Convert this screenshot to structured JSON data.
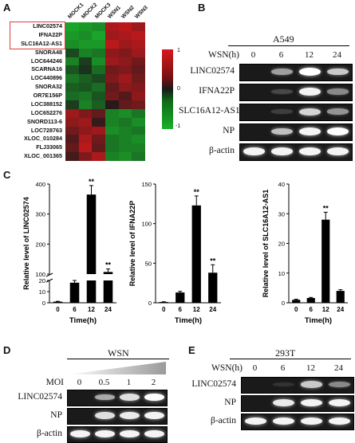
{
  "panels": {
    "A": {
      "letter": "A",
      "columns": [
        "MOCK1",
        "MOCK2",
        "MOCK3",
        "WSN1",
        "WSN2",
        "WSN3"
      ],
      "genes": [
        "LINC02574",
        "IFNA22P",
        "SLC16A12-AS1",
        "SNORA48",
        "LOC644246",
        "SCARNA16",
        "LOC440896",
        "SNORA32",
        "OR7E156P",
        "LOC388152",
        "LOC652276",
        "SNORD113-6",
        "LOC728763",
        "XLOC_010284",
        "FLJ33065",
        "XLOC_001365"
      ],
      "highlighted_genes": [
        "LINC02574",
        "IFNA22P",
        "SLC16A12-AS1"
      ],
      "values": [
        [
          -1.2,
          -1.1,
          -1.0,
          1.0,
          1.1,
          0.9
        ],
        [
          -1.1,
          -1.0,
          -1.2,
          0.9,
          1.0,
          1.1
        ],
        [
          -1.0,
          -1.1,
          -1.1,
          1.1,
          0.9,
          1.0
        ],
        [
          -0.4,
          -0.9,
          -0.8,
          0.8,
          0.7,
          0.9
        ],
        [
          -0.9,
          -0.3,
          -1.0,
          0.9,
          0.8,
          0.6
        ],
        [
          -0.5,
          -0.2,
          -0.7,
          0.6,
          0.7,
          0.5
        ],
        [
          -0.8,
          -0.6,
          -0.4,
          0.7,
          0.9,
          0.6
        ],
        [
          -0.6,
          -0.5,
          -0.7,
          0.5,
          0.8,
          0.7
        ],
        [
          -0.7,
          -0.8,
          -0.5,
          0.6,
          0.4,
          0.8
        ],
        [
          -0.3,
          -0.9,
          -0.6,
          0.1,
          0.5,
          0.6
        ],
        [
          0.9,
          0.7,
          0.5,
          -0.9,
          -1.0,
          -0.8
        ],
        [
          0.8,
          0.9,
          0.2,
          -0.9,
          -0.8,
          -1.0
        ],
        [
          0.6,
          0.8,
          0.9,
          -1.0,
          -0.9,
          -0.8
        ],
        [
          0.4,
          1.0,
          0.6,
          -0.8,
          -0.9,
          -1.0
        ],
        [
          0.5,
          1.1,
          0.5,
          -0.8,
          -0.9,
          -0.9
        ],
        [
          0.3,
          0.7,
          1.0,
          -0.9,
          -1.0,
          -0.8
        ]
      ],
      "colorbar": {
        "ticks": [
          "1",
          "0",
          "-1"
        ],
        "high_color": "#d7191c",
        "mid_color": "#1a1a1a",
        "low_color": "#1ab02a"
      }
    },
    "B": {
      "letter": "B",
      "cell_line": "A549",
      "axis_label": "WSN(h)",
      "lanes": [
        "0",
        "6",
        "12",
        "24"
      ],
      "rows": [
        {
          "label": "LINC02574",
          "intensity": [
            0.0,
            0.55,
            1.0,
            0.75
          ]
        },
        {
          "label": "IFNA22P",
          "intensity": [
            0.0,
            0.15,
            0.95,
            0.45
          ]
        },
        {
          "label": "SLC16A12-AS1",
          "intensity": [
            0.0,
            0.1,
            0.8,
            0.5
          ]
        },
        {
          "label": "NP",
          "intensity": [
            0.0,
            0.7,
            0.95,
            1.0
          ]
        },
        {
          "label": "β-actin",
          "intensity": [
            0.95,
            0.95,
            0.95,
            0.95
          ]
        }
      ]
    },
    "C": {
      "letter": "C",
      "charts": [
        {
          "ylabel": "Relative level of LINC02574",
          "xlabel": "Time(h)",
          "categories": [
            "0",
            "6",
            "12",
            "24"
          ],
          "values": [
            1,
            18,
            365,
            107
          ],
          "errors": [
            0.3,
            2,
            30,
            10
          ],
          "significance": [
            "",
            "",
            "**",
            "**"
          ],
          "upper_ticks": [
            "400",
            "300",
            "200",
            "100"
          ],
          "lower_ticks": [
            "20",
            "10",
            "0"
          ],
          "break": [
            20,
            100
          ]
        },
        {
          "ylabel": "Relative level of IFNA22P",
          "xlabel": "Time(h)",
          "categories": [
            "0",
            "6",
            "12",
            "24"
          ],
          "values": [
            1,
            13,
            123,
            38
          ],
          "errors": [
            0.3,
            1.5,
            12,
            10
          ],
          "significance": [
            "",
            "",
            "**",
            "**"
          ],
          "ticks": [
            "150",
            "100",
            "50",
            "0"
          ],
          "ylim": [
            0,
            150
          ]
        },
        {
          "ylabel": "Relative level of SLC16A12-AS1",
          "xlabel": "Time(h)",
          "categories": [
            "0",
            "6",
            "12",
            "24"
          ],
          "values": [
            1,
            1.6,
            28,
            4
          ],
          "errors": [
            0.2,
            0.2,
            2.5,
            0.4
          ],
          "significance": [
            "",
            "",
            "**",
            ""
          ],
          "ticks": [
            "40",
            "30",
            "20",
            "10",
            "0"
          ],
          "ylim": [
            0,
            40
          ]
        }
      ]
    },
    "D": {
      "letter": "D",
      "treatment": "WSN",
      "axis_label": "MOI",
      "lanes": [
        "0",
        "0.5",
        "1",
        "2"
      ],
      "rows": [
        {
          "label": "LINC02574",
          "intensity": [
            0.0,
            0.6,
            0.85,
            1.0
          ]
        },
        {
          "label": "NP",
          "intensity": [
            0.0,
            0.85,
            0.9,
            0.95
          ]
        },
        {
          "label": "β-actin",
          "intensity": [
            0.95,
            0.95,
            0.95,
            0.95
          ]
        }
      ]
    },
    "E": {
      "letter": "E",
      "cell_line": "293T",
      "axis_label": "WSN(h)",
      "lanes": [
        "0",
        "6",
        "12",
        "24"
      ],
      "rows": [
        {
          "label": "LINC02574",
          "intensity": [
            0.0,
            0.05,
            0.75,
            0.45
          ]
        },
        {
          "label": "NP",
          "intensity": [
            0.0,
            0.9,
            0.95,
            0.95
          ]
        },
        {
          "label": "β-actin",
          "intensity": [
            0.95,
            0.95,
            0.95,
            0.95
          ]
        }
      ]
    }
  }
}
